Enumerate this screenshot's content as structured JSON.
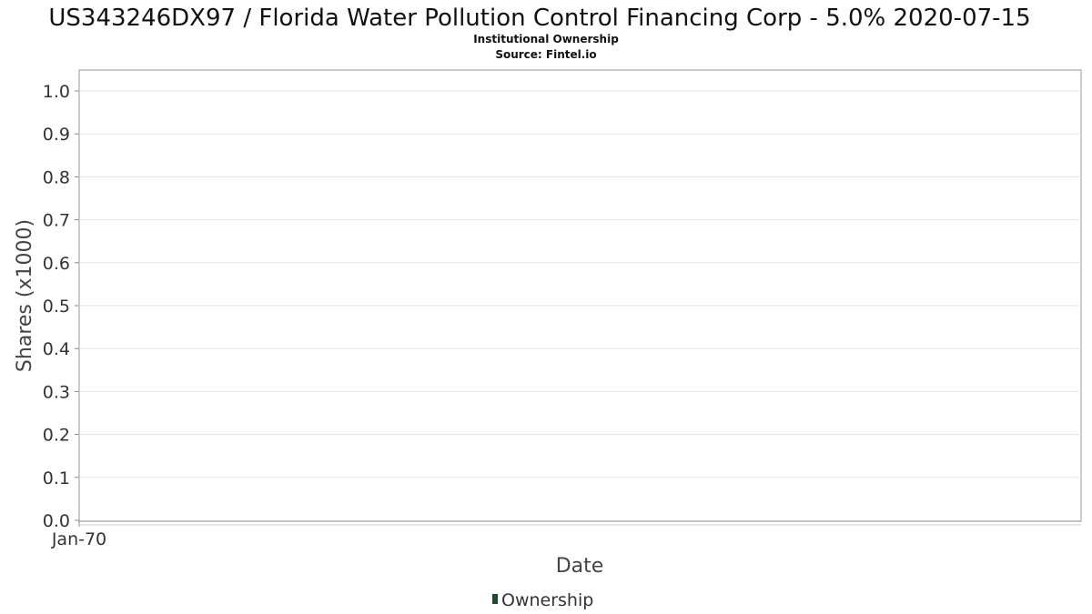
{
  "chart_data": {
    "type": "area",
    "title": "US343246DX97 / Florida Water Pollution Control Financing Corp - 5.0% 2020-07-15",
    "subtitle": "Institutional Ownership",
    "source": "Source: Fintel.io",
    "xlabel": "Date",
    "ylabel": "Shares (x1000)",
    "ylim": [
      0,
      1.0
    ],
    "yticks": [
      "0.0",
      "0.1",
      "0.2",
      "0.3",
      "0.4",
      "0.5",
      "0.6",
      "0.7",
      "0.8",
      "0.9",
      "1.0"
    ],
    "xticks": [
      "Jan-70"
    ],
    "grid": true,
    "legend_placement": "bottom-center",
    "series": [
      {
        "name": "Ownership",
        "color": "#1f4a2c",
        "x": [],
        "values": []
      }
    ]
  }
}
